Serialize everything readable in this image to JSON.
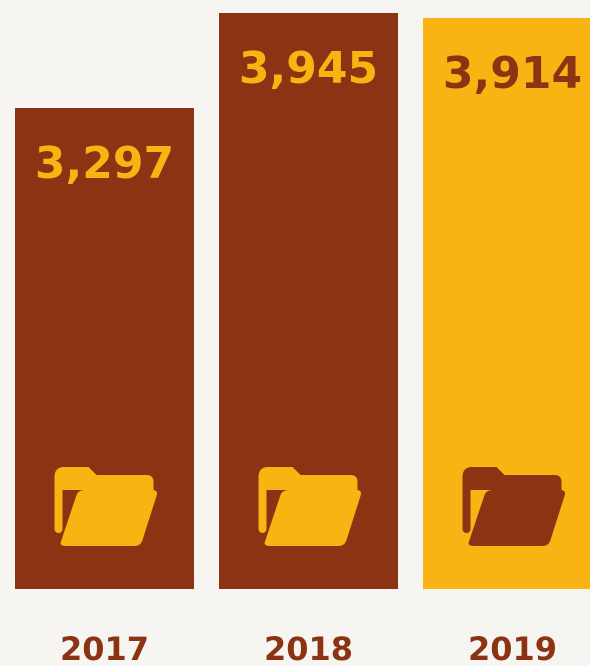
{
  "chart_data": {
    "type": "bar",
    "categories": [
      "2017",
      "2018",
      "2019"
    ],
    "values": [
      3297,
      3945,
      3914
    ],
    "value_labels": [
      "3,297",
      "3,945",
      "3,914"
    ],
    "title": "",
    "xlabel": "",
    "ylabel": "",
    "bar_icon": "folder-open-icon",
    "colors": {
      "background": "#f7f5f2",
      "bar_primary": "#8b3312",
      "bar_highlight": "#f9b414",
      "label_on_primary": "#f9b414",
      "label_on_highlight": "#8b3312",
      "category_text": "#8b3312"
    },
    "highlighted_category": "2019"
  }
}
